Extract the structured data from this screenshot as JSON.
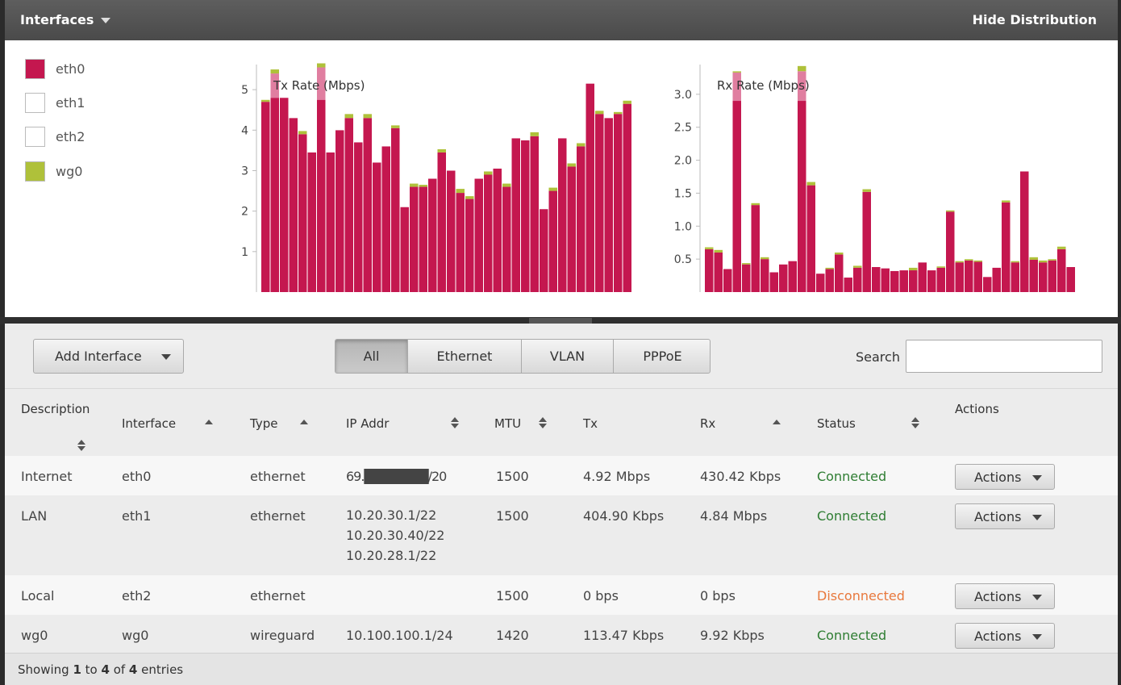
{
  "header": {
    "title": "Interfaces",
    "hide_label": "Hide Distribution"
  },
  "legend": [
    {
      "label": "eth0",
      "color": "#c4174f"
    },
    {
      "label": "eth1",
      "color": "#ffffff"
    },
    {
      "label": "eth2",
      "color": "#ffffff"
    },
    {
      "label": "wg0",
      "color": "#afc13a"
    }
  ],
  "chart_data": [
    {
      "type": "bar",
      "title": "Tx Rate (Mbps)",
      "ylim": [
        0,
        5.7
      ],
      "yticks": [
        1,
        2,
        3,
        4,
        5
      ],
      "series": [
        {
          "name": "eth0",
          "values": [
            4.7,
            4.8,
            4.8,
            4.3,
            3.9,
            3.45,
            4.75,
            3.45,
            4.0,
            4.3,
            3.7,
            4.3,
            3.2,
            3.6,
            4.05,
            2.1,
            2.6,
            2.6,
            2.8,
            3.45,
            3.0,
            2.45,
            2.3,
            2.8,
            2.9,
            3.05,
            2.6,
            3.8,
            3.75,
            3.85,
            2.05,
            2.5,
            3.8,
            3.1,
            3.6,
            5.15,
            4.4,
            4.3,
            4.4,
            4.65
          ]
        },
        {
          "name": "eth0-highlight",
          "values": [
            0,
            0.6,
            0,
            0,
            0,
            0,
            0.8,
            0,
            0,
            0,
            0,
            0,
            0,
            0,
            0,
            0,
            0,
            0,
            0,
            0,
            0,
            0,
            0,
            0,
            0,
            0,
            0,
            0,
            0,
            0,
            0,
            0,
            0,
            0,
            0,
            0,
            0,
            0,
            0,
            0
          ]
        },
        {
          "name": "wg0",
          "values": [
            0.05,
            0.1,
            0,
            0,
            0.08,
            0,
            0.1,
            0,
            0,
            0.1,
            0,
            0.1,
            0,
            0,
            0.07,
            0,
            0.08,
            0.05,
            0,
            0.08,
            0,
            0.1,
            0.07,
            0,
            0.08,
            0,
            0.08,
            0,
            0,
            0.1,
            0,
            0.08,
            0,
            0.08,
            0.08,
            0,
            0.08,
            0,
            0.05,
            0.08
          ]
        }
      ]
    },
    {
      "type": "bar",
      "title": "Rx Rate (Mbps)",
      "ylim": [
        0,
        3.5
      ],
      "yticks": [
        0.5,
        1.0,
        1.5,
        2.0,
        2.5,
        3.0
      ],
      "series": [
        {
          "name": "eth0",
          "values": [
            0.65,
            0.6,
            0.35,
            2.9,
            0.42,
            1.32,
            0.5,
            0.3,
            0.42,
            0.47,
            2.9,
            1.62,
            0.28,
            0.35,
            0.57,
            0.22,
            0.37,
            1.52,
            0.38,
            0.36,
            0.32,
            0.33,
            0.33,
            0.45,
            0.33,
            0.37,
            1.22,
            0.45,
            0.48,
            0.46,
            0.23,
            0.37,
            1.36,
            0.45,
            1.83,
            0.49,
            0.45,
            0.48,
            0.65,
            0.38
          ]
        },
        {
          "name": "eth0-highlight",
          "values": [
            0,
            0,
            0,
            0.43,
            0,
            0,
            0,
            0,
            0,
            0,
            0.45,
            0,
            0,
            0,
            0,
            0,
            0,
            0,
            0,
            0,
            0,
            0,
            0,
            0,
            0,
            0,
            0,
            0,
            0,
            0,
            0,
            0,
            0,
            0,
            0,
            0,
            0,
            0,
            0,
            0
          ]
        },
        {
          "name": "wg0",
          "values": [
            0.03,
            0.04,
            0,
            0.02,
            0.02,
            0.03,
            0.03,
            0,
            0,
            0,
            0.08,
            0.05,
            0,
            0.02,
            0.03,
            0,
            0.03,
            0.04,
            0,
            0,
            0,
            0,
            0.04,
            0,
            0,
            0.02,
            0.02,
            0.02,
            0.02,
            0.02,
            0,
            0,
            0.03,
            0.02,
            0,
            0.04,
            0.03,
            0.02,
            0.04,
            0
          ]
        }
      ]
    }
  ],
  "toolbar": {
    "add_label": "Add Interface",
    "filters": [
      "All",
      "Ethernet",
      "VLAN",
      "PPPoE"
    ],
    "active_filter": "All",
    "search_label": "Search",
    "search_value": ""
  },
  "table": {
    "headers": [
      "Description",
      "Interface",
      "Type",
      "IP Addr",
      "MTU",
      "Tx",
      "Rx",
      "Status",
      "Actions"
    ],
    "rows": [
      {
        "description": "Internet",
        "interface": "eth0",
        "type": "ethernet",
        "ip": [
          "69.███████/20"
        ],
        "mtu": "1500",
        "tx": "4.92 Mbps",
        "rx": "430.42 Kbps",
        "status": "Connected",
        "action": "Actions"
      },
      {
        "description": "LAN",
        "interface": "eth1",
        "type": "ethernet",
        "ip": [
          "10.20.30.1/22",
          "10.20.30.40/22",
          "10.20.28.1/22"
        ],
        "mtu": "1500",
        "tx": "404.90 Kbps",
        "rx": "4.84 Mbps",
        "status": "Connected",
        "action": "Actions"
      },
      {
        "description": "Local",
        "interface": "eth2",
        "type": "ethernet",
        "ip": [],
        "mtu": "1500",
        "tx": "0 bps",
        "rx": "0 bps",
        "status": "Disconnected",
        "action": "Actions"
      },
      {
        "description": "wg0",
        "interface": "wg0",
        "type": "wireguard",
        "ip": [
          "10.100.100.1/24"
        ],
        "mtu": "1420",
        "tx": "113.47 Kbps",
        "rx": "9.92 Kbps",
        "status": "Connected",
        "action": "Actions"
      }
    ]
  },
  "footer": {
    "prefix": "Showing ",
    "from": "1",
    "mid1": " to ",
    "to": "4",
    "mid2": " of ",
    "total": "4",
    "suffix": " entries"
  },
  "colors": {
    "eth0": "#c4174f",
    "eth0_light": "#e07ea0",
    "wg0": "#afc13a",
    "connected": "#2e7d32",
    "disconnected": "#e8783c"
  }
}
